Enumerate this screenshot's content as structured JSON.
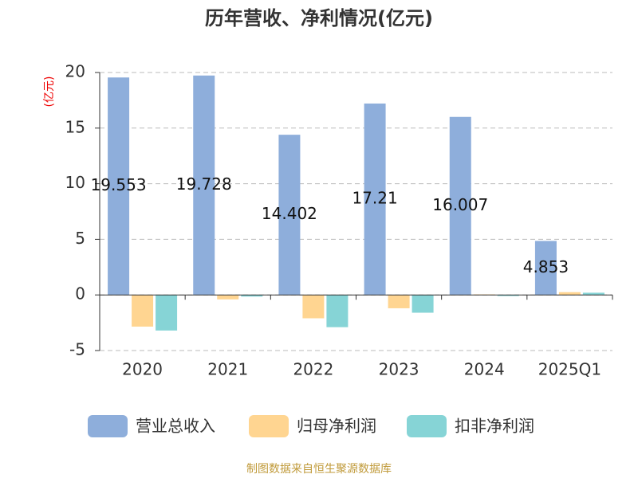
{
  "chart_data": {
    "type": "bar",
    "title": "历年营收、净利情况(亿元)",
    "y_label": "(亿元)",
    "categories": [
      "2020",
      "2021",
      "2022",
      "2023",
      "2024",
      "2025Q1"
    ],
    "series": [
      {
        "name": "营业总收入",
        "color": "#8eaedb",
        "values": [
          19.553,
          19.728,
          14.402,
          17.21,
          16.007,
          4.853
        ]
      },
      {
        "name": "归母净利润",
        "color": "#ffd591",
        "values": [
          -2.85,
          -0.4,
          -2.1,
          -1.2,
          0.05,
          0.25
        ]
      },
      {
        "name": "扣非净利润",
        "color": "#86d4d6",
        "values": [
          -3.2,
          -0.15,
          -2.9,
          -1.6,
          -0.1,
          0.2
        ]
      }
    ],
    "ylim": [
      -5,
      20
    ],
    "yticks": [
      -5,
      0,
      5,
      10,
      15,
      20
    ],
    "grid": true,
    "source": "制图数据来自恒生聚源数据库"
  }
}
